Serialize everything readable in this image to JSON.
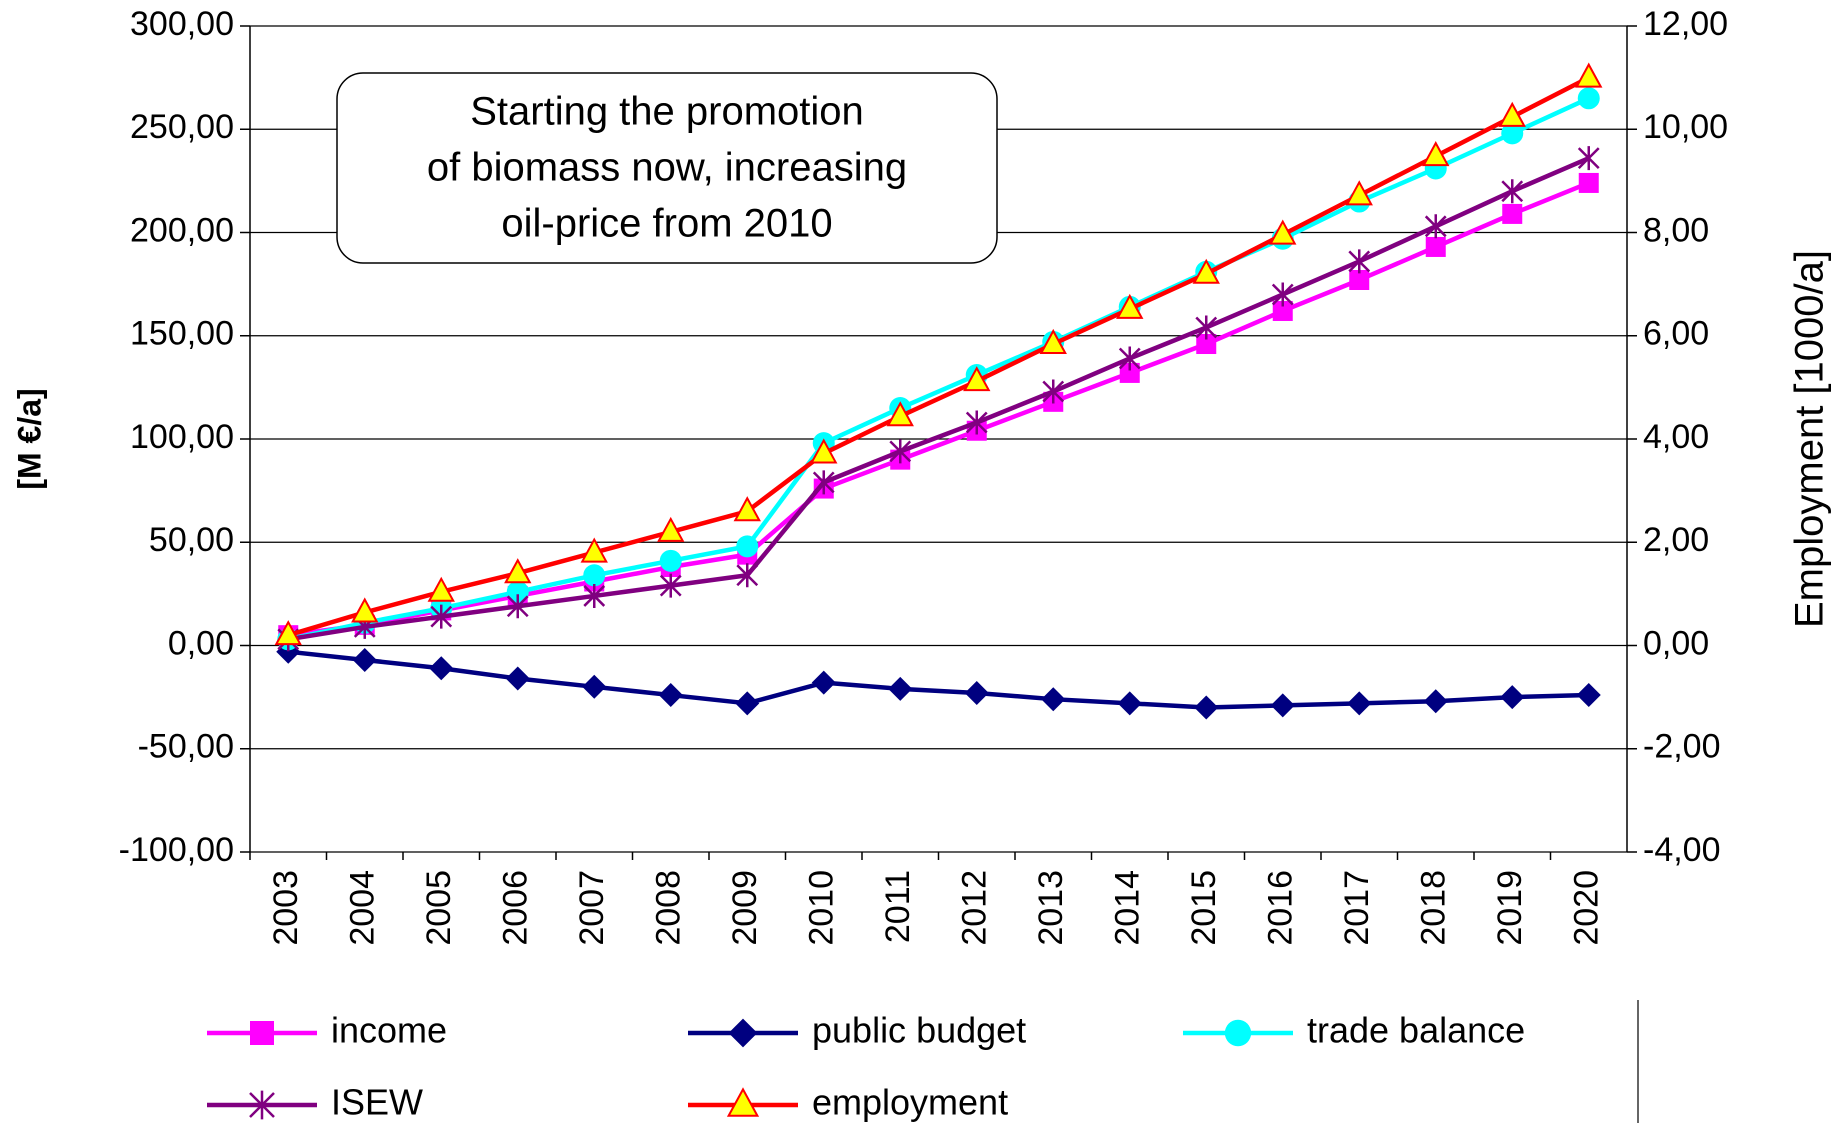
{
  "chart_data": {
    "type": "line",
    "annotation": [
      "Starting the promotion",
      "of biomass now, increasing",
      "oil-price from 2010"
    ],
    "y_label": "[M €/a]",
    "y2_label": "Employment [1000/a]",
    "categories": [
      "2003",
      "2004",
      "2005",
      "2006",
      "2007",
      "2008",
      "2009",
      "2010",
      "2011",
      "2012",
      "2013",
      "2014",
      "2015",
      "2016",
      "2017",
      "2018",
      "2019",
      "2020"
    ],
    "ylim": [
      -100,
      300
    ],
    "yticks": [
      {
        "value": -100,
        "label": "-100,00"
      },
      {
        "value": -50,
        "label": "-50,00"
      },
      {
        "value": 0,
        "label": "0,00"
      },
      {
        "value": 50,
        "label": "50,00"
      },
      {
        "value": 100,
        "label": "100,00"
      },
      {
        "value": 150,
        "label": "150,00"
      },
      {
        "value": 200,
        "label": "200,00"
      },
      {
        "value": 250,
        "label": "250,00"
      },
      {
        "value": 300,
        "label": "300,00"
      }
    ],
    "y2lim": [
      -4,
      12
    ],
    "y2ticks": [
      {
        "value": -4,
        "label": "-4,00"
      },
      {
        "value": -2,
        "label": "-2,00"
      },
      {
        "value": 0,
        "label": "0,00"
      },
      {
        "value": 2,
        "label": "2,00"
      },
      {
        "value": 4,
        "label": "4,00"
      },
      {
        "value": 6,
        "label": "6,00"
      },
      {
        "value": 8,
        "label": "8,00"
      },
      {
        "value": 10,
        "label": "10,00"
      },
      {
        "value": 12,
        "label": "12,00"
      }
    ],
    "grid": true,
    "series": [
      {
        "name": "income",
        "color": "#ff00ff",
        "marker": "square",
        "marker_color": "#ff00ff",
        "values": [
          5,
          10,
          17,
          24,
          31,
          38,
          44,
          76,
          90,
          104,
          118,
          132,
          146,
          162,
          177,
          193,
          209,
          224
        ]
      },
      {
        "name": "public budget",
        "color": "#000080",
        "marker": "diamond",
        "marker_color": "#000080",
        "values": [
          -3,
          -7,
          -11,
          -16,
          -20,
          -24,
          -28,
          -18,
          -21,
          -23,
          -26,
          -28,
          -30,
          -29,
          -28,
          -27,
          -25,
          -24
        ]
      },
      {
        "name": "trade balance",
        "color": "#00ffff",
        "marker": "circle",
        "marker_color": "#00ffff",
        "values": [
          3,
          11,
          18,
          26,
          34,
          41,
          48,
          98,
          115,
          131,
          147,
          164,
          181,
          197,
          215,
          231,
          248,
          265
        ]
      },
      {
        "name": "ISEW",
        "color": "#800080",
        "marker": "asterisk",
        "marker_color": "#800080",
        "values": [
          3,
          9,
          14,
          19,
          24,
          29,
          34,
          79,
          94,
          108,
          123,
          139,
          154,
          170,
          186,
          203,
          220,
          236
        ]
      },
      {
        "name": "employment",
        "color": "#ff0000",
        "marker": "triangle",
        "marker_color": "#ffff00",
        "axis": "y2",
        "values": [
          0.2,
          0.64,
          1.04,
          1.4,
          1.8,
          2.2,
          2.6,
          3.72,
          4.44,
          5.12,
          5.84,
          6.52,
          7.2,
          7.96,
          8.72,
          9.48,
          10.24,
          11.0
        ]
      }
    ]
  }
}
